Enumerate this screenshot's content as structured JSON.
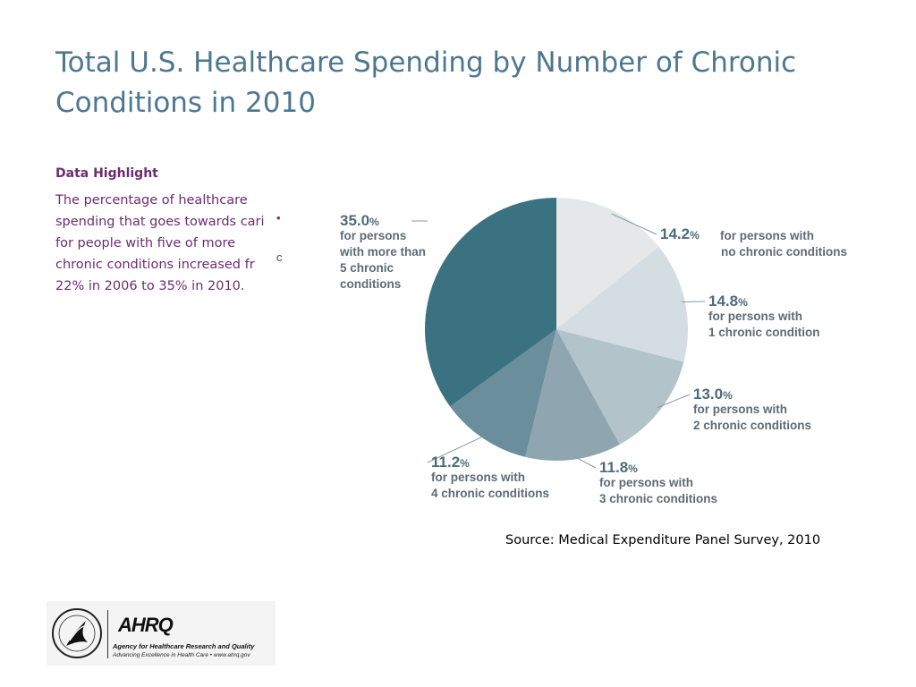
{
  "slide": {
    "title": "Total U.S. Healthcare Spending by Number of Chronic Conditions in 2010",
    "highlight_heading": "Data Highlight",
    "highlight_text": "The percentage of healthcare\nspending that goes towards cari\nfor people with five of more\nchronic conditions increased fr\n22% in 2006 to 35% in 2010.",
    "highlight_dot": "•",
    "highlight_c": "c",
    "source": "Source: Medical Expenditure Panel Survey, 2010"
  },
  "logo": {
    "mark": "AHRQ",
    "agency": "Agency for Healthcare Research and Quality",
    "tagline": "Advancing Excellence in Health Care • www.ahrq.gov"
  },
  "chart_data": {
    "type": "pie",
    "title": "",
    "slices": [
      {
        "value": 14.2,
        "label_value": "14.2",
        "lines": [
          "for persons with",
          "no chronic conditions"
        ],
        "color": "#e6e7e8"
      },
      {
        "value": 14.8,
        "label_value": "14.8",
        "lines": [
          "for persons with",
          "1 chronic condition"
        ],
        "color": "#d4dde2"
      },
      {
        "value": 13.0,
        "label_value": "13.0",
        "lines": [
          "for persons with",
          "2 chronic conditions"
        ],
        "color": "#b3c3ca"
      },
      {
        "value": 11.8,
        "label_value": "11.8",
        "lines": [
          "for persons with",
          "3 chronic conditions"
        ],
        "color": "#8fa6b0"
      },
      {
        "value": 11.2,
        "label_value": "11.2",
        "lines": [
          "for persons with",
          "4 chronic conditions"
        ],
        "color": "#6a8e9c"
      },
      {
        "value": 35.0,
        "label_value": "35.0",
        "lines": [
          "for persons",
          "with more than",
          "5 chronic",
          "conditions"
        ],
        "color": "#3a7282"
      }
    ],
    "percent_symbol": "%",
    "label_color": "#5e6b73",
    "pct_color": "#4f6b79"
  }
}
